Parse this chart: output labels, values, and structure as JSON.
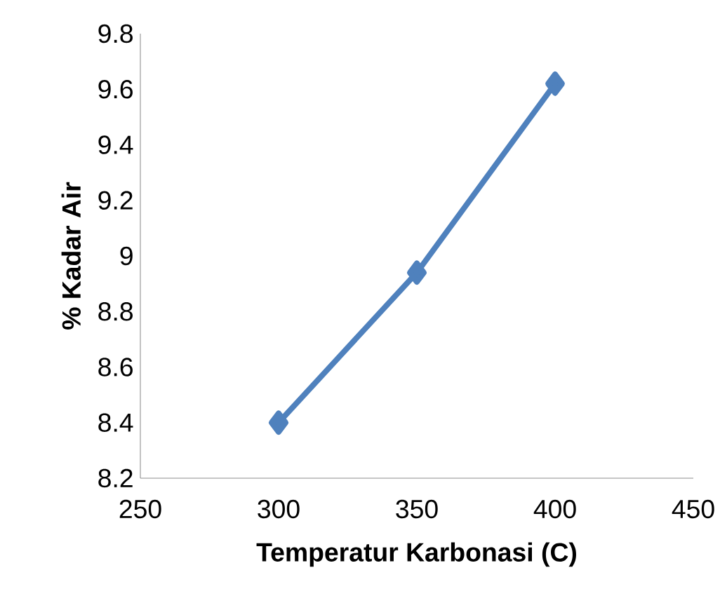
{
  "chart_data": {
    "type": "line",
    "xlabel": "Temperatur Karbonasi (C)",
    "ylabel": "% Kadar Air",
    "x": [
      300,
      350,
      400
    ],
    "series": [
      {
        "color": "#4f81bd",
        "values": [
          8.4,
          8.94,
          9.62
        ]
      }
    ],
    "xlim": [
      250,
      450
    ],
    "xticks": [
      250,
      300,
      350,
      400,
      450
    ],
    "ylim": [
      8.2,
      9.8
    ],
    "yticks": [
      8.2,
      8.4,
      8.6,
      8.8,
      9,
      9.2,
      9.4,
      9.6,
      9.8
    ],
    "grid": false,
    "marker": "diamond",
    "line_style": "solid"
  }
}
